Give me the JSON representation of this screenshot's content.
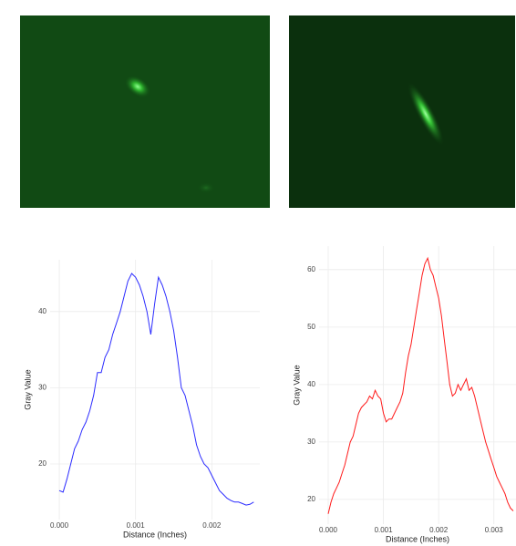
{
  "chart_data": [
    {
      "type": "line",
      "x_label": "Distance (Inches)",
      "y_label": "Gray Value",
      "color": "#2b2bff",
      "grid": true,
      "xlim": [
        -0.00012,
        0.00263
      ],
      "ylim": [
        12.7,
        46.8
      ],
      "xticks": [
        {
          "value": 0,
          "label": "0.000"
        },
        {
          "value": 0.001,
          "label": "0.001"
        },
        {
          "value": 0.002,
          "label": "0.002"
        }
      ],
      "yticks": [
        20,
        30,
        40
      ],
      "x": [
        0,
        5e-05,
        0.0001,
        0.00015,
        0.0002,
        0.00025,
        0.0003,
        0.00035,
        0.0004,
        0.00045,
        0.0005,
        0.00055,
        0.0006,
        0.00065,
        0.0007,
        0.00075,
        0.0008,
        0.00085,
        0.0009,
        0.00095,
        0.001,
        0.00105,
        0.0011,
        0.00115,
        0.0012,
        0.00125,
        0.0013,
        0.00135,
        0.0014,
        0.00145,
        0.0015,
        0.00155,
        0.0016,
        0.00165,
        0.0017,
        0.00175,
        0.0018,
        0.00185,
        0.0019,
        0.00195,
        0.002,
        0.00205,
        0.0021,
        0.00215,
        0.0022,
        0.00225,
        0.0023,
        0.00235,
        0.0024,
        0.00245,
        0.0025,
        0.00255
      ],
      "values": [
        16.5,
        16.3,
        18,
        20,
        22,
        23,
        24.5,
        25.5,
        27,
        29,
        32,
        32,
        34,
        35,
        37,
        38.5,
        40,
        42,
        44,
        45,
        44.5,
        43.5,
        42,
        40,
        37,
        41,
        44.5,
        43.5,
        42,
        40,
        37.5,
        34,
        30,
        29,
        27,
        25,
        22.5,
        21,
        20,
        19.5,
        18.5,
        17.5,
        16.5,
        16,
        15.5,
        15.2,
        15,
        15,
        14.8,
        14.6,
        14.7,
        15
      ]
    },
    {
      "type": "line",
      "x_label": "Distance (Inches)",
      "y_label": "Gray Value",
      "color": "#ff1a1a",
      "grid": true,
      "xlim": [
        -0.000165,
        0.0034
      ],
      "ylim": [
        15.7,
        64.1
      ],
      "xticks": [
        {
          "value": 0,
          "label": "0.000"
        },
        {
          "value": 0.001,
          "label": "0.001"
        },
        {
          "value": 0.002,
          "label": "0.002"
        },
        {
          "value": 0.003,
          "label": "0.003"
        }
      ],
      "yticks": [
        20,
        30,
        40,
        50,
        60
      ],
      "x": [
        0,
        5e-05,
        0.0001,
        0.00015,
        0.0002,
        0.00025,
        0.0003,
        0.00035,
        0.0004,
        0.00045,
        0.0005,
        0.00055,
        0.0006,
        0.00065,
        0.0007,
        0.00075,
        0.0008,
        0.00085,
        0.0009,
        0.00095,
        0.001,
        0.00105,
        0.0011,
        0.00115,
        0.0012,
        0.00125,
        0.0013,
        0.00135,
        0.0014,
        0.00145,
        0.0015,
        0.00155,
        0.0016,
        0.00165,
        0.0017,
        0.00175,
        0.0018,
        0.00185,
        0.0019,
        0.00195,
        0.002,
        0.00205,
        0.0021,
        0.00215,
        0.0022,
        0.00225,
        0.0023,
        0.00235,
        0.0024,
        0.00245,
        0.0025,
        0.00255,
        0.0026,
        0.00265,
        0.0027,
        0.00275,
        0.0028,
        0.00285,
        0.0029,
        0.00295,
        0.003,
        0.00305,
        0.0031,
        0.00315,
        0.0032,
        0.00325,
        0.0033,
        0.00335
      ],
      "values": [
        17.5,
        19.5,
        21,
        22,
        23,
        24.5,
        26,
        28,
        30,
        31,
        33,
        35,
        36,
        36.5,
        37,
        38,
        37.5,
        39,
        38,
        37.5,
        35,
        33.5,
        34,
        34,
        35,
        36,
        37,
        38.5,
        42,
        45,
        47,
        50,
        53,
        56,
        59,
        61,
        62,
        60,
        59,
        57,
        55,
        52,
        48,
        44,
        40,
        38,
        38.5,
        40,
        39,
        40,
        41,
        39,
        39.5,
        38,
        36,
        34,
        32,
        30,
        28.5,
        27,
        25.5,
        24,
        23,
        22,
        21,
        19.5,
        18.5,
        18
      ]
    }
  ]
}
